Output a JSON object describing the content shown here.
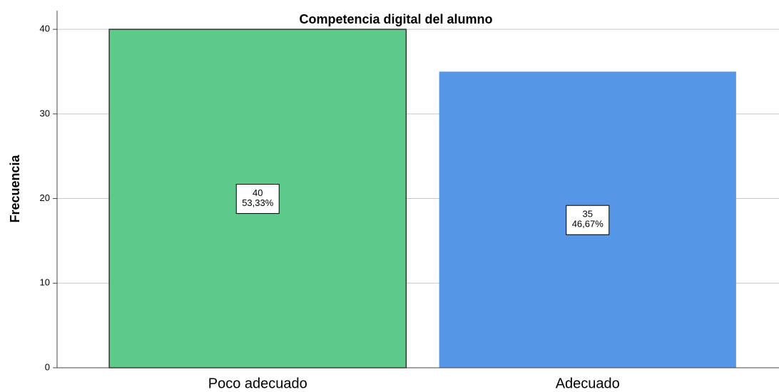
{
  "chart_data": {
    "type": "bar",
    "title": "Competencia digital del alumno",
    "ylabel": "Frecuencia",
    "categories": [
      "Poco adecuado",
      "Adecuado"
    ],
    "values": [
      40,
      35
    ],
    "percent_labels": [
      "53,33%",
      "46,67%"
    ],
    "colors": [
      "#5dc98a",
      "#5596e6"
    ],
    "ylim": [
      0,
      42.2
    ],
    "yticks": [
      0,
      10,
      20,
      30,
      40
    ],
    "grid": true
  }
}
